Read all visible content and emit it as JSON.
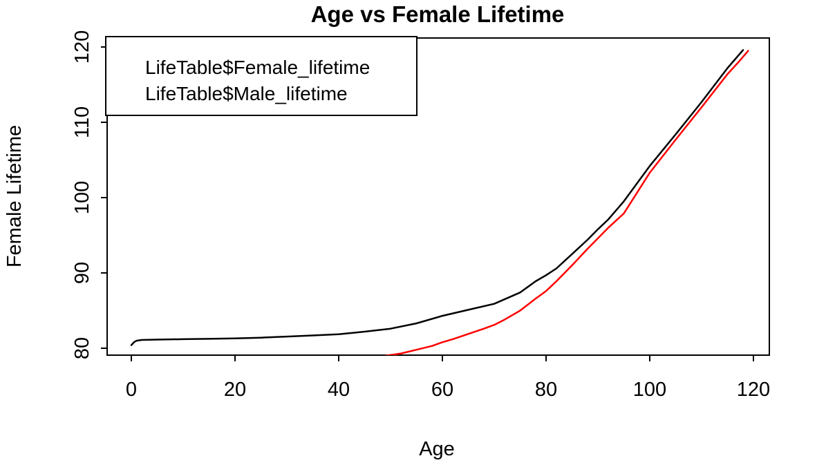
{
  "chart_data": {
    "type": "line",
    "title": "Age vs Female Lifetime",
    "xlabel": "Age",
    "ylabel": "Female Lifetime",
    "xlim": [
      0,
      120
    ],
    "ylim": [
      80,
      120
    ],
    "x_ticks": [
      0,
      20,
      40,
      60,
      80,
      100,
      120
    ],
    "y_ticks": [
      80,
      90,
      100,
      110,
      120
    ],
    "grid": false,
    "plot_bg": "#ffffff",
    "box_color": "#000000",
    "legend": {
      "position": "top-left",
      "entries": [
        "LifeTable$Female_lifetime",
        "LifeTable$Male_lifetime"
      ]
    },
    "series": [
      {
        "name": "LifeTable$Female_lifetime",
        "color": "#000000",
        "points": [
          [
            0,
            80.4
          ],
          [
            0.5,
            80.8
          ],
          [
            1,
            81.0
          ],
          [
            2,
            81.1
          ],
          [
            5,
            81.15
          ],
          [
            10,
            81.2
          ],
          [
            15,
            81.25
          ],
          [
            20,
            81.3
          ],
          [
            25,
            81.4
          ],
          [
            30,
            81.55
          ],
          [
            35,
            81.7
          ],
          [
            40,
            81.85
          ],
          [
            45,
            82.2
          ],
          [
            50,
            82.6
          ],
          [
            55,
            83.3
          ],
          [
            60,
            84.3
          ],
          [
            65,
            85.1
          ],
          [
            70,
            85.9
          ],
          [
            75,
            87.4
          ],
          [
            78,
            88.9
          ],
          [
            80,
            89.7
          ],
          [
            82,
            90.6
          ],
          [
            85,
            92.5
          ],
          [
            88,
            94.4
          ],
          [
            90,
            95.8
          ],
          [
            92,
            97.1
          ],
          [
            95,
            99.5
          ],
          [
            100,
            104.2
          ],
          [
            105,
            108.4
          ],
          [
            110,
            112.7
          ],
          [
            115,
            117.2
          ],
          [
            118,
            119.6
          ]
        ]
      },
      {
        "name": "LifeTable$Male_lifetime",
        "color": "#FF0000",
        "points": [
          [
            49,
            79.0
          ],
          [
            52,
            79.3
          ],
          [
            55,
            79.8
          ],
          [
            58,
            80.3
          ],
          [
            60,
            80.8
          ],
          [
            62,
            81.2
          ],
          [
            65,
            81.9
          ],
          [
            68,
            82.6
          ],
          [
            70,
            83.1
          ],
          [
            72,
            83.8
          ],
          [
            75,
            85.0
          ],
          [
            78,
            86.6
          ],
          [
            80,
            87.6
          ],
          [
            82,
            88.9
          ],
          [
            85,
            91.0
          ],
          [
            88,
            93.2
          ],
          [
            90,
            94.6
          ],
          [
            92,
            96.0
          ],
          [
            95,
            97.9
          ],
          [
            100,
            103.3
          ],
          [
            105,
            107.7
          ],
          [
            110,
            112.0
          ],
          [
            115,
            116.4
          ],
          [
            117,
            117.9
          ],
          [
            119,
            119.5
          ]
        ]
      }
    ]
  }
}
